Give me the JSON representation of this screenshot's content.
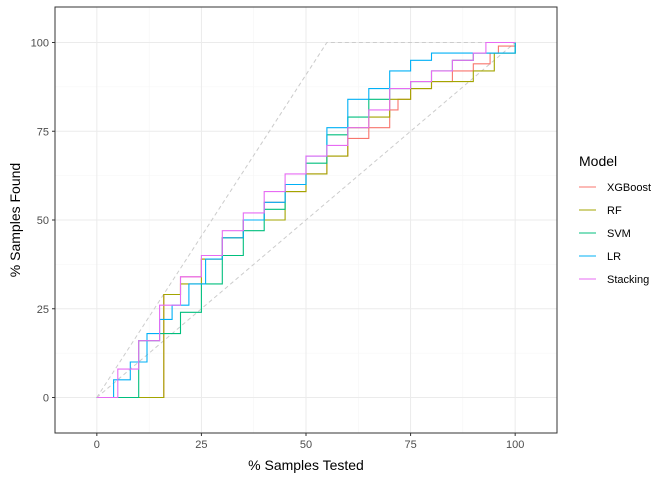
{
  "chart_data": {
    "type": "line",
    "xlabel": "% Samples Tested",
    "ylabel": "% Samples Found",
    "xlim": [
      -10,
      110
    ],
    "ylim": [
      -10,
      110
    ],
    "x_ticks": [
      0,
      25,
      50,
      75,
      100
    ],
    "y_ticks": [
      0,
      25,
      50,
      75,
      100
    ],
    "x_tick_labels": [
      "0",
      "25",
      "50",
      "75",
      "100"
    ],
    "y_tick_labels": [
      "0",
      "25",
      "50",
      "75",
      "100"
    ],
    "grid": true,
    "legend_title": "Model",
    "legend_position": "right",
    "reference_lines": [
      {
        "style": "dashed",
        "color": "#cccccc",
        "points": [
          [
            0,
            0
          ],
          [
            55,
            100
          ],
          [
            100,
            100
          ]
        ]
      },
      {
        "style": "dashed",
        "color": "#cccccc",
        "points": [
          [
            0,
            0
          ],
          [
            100,
            100
          ]
        ]
      }
    ],
    "series": [
      {
        "name": "XGBoost",
        "color": "#F8766D",
        "points": [
          [
            0,
            0
          ],
          [
            16,
            29
          ],
          [
            20,
            34
          ],
          [
            25,
            39
          ],
          [
            30,
            45
          ],
          [
            35,
            50
          ],
          [
            40,
            55
          ],
          [
            45,
            58
          ],
          [
            50,
            63
          ],
          [
            55,
            68
          ],
          [
            60,
            73
          ],
          [
            65,
            76
          ],
          [
            70,
            81
          ],
          [
            72,
            84
          ],
          [
            75,
            87
          ],
          [
            80,
            89
          ],
          [
            85,
            92
          ],
          [
            90,
            94
          ],
          [
            94,
            97
          ],
          [
            96,
            99
          ],
          [
            100,
            100
          ]
        ]
      },
      {
        "name": "RF",
        "color": "#A3A500",
        "points": [
          [
            0,
            0
          ],
          [
            16,
            29
          ],
          [
            20,
            32
          ],
          [
            25,
            39
          ],
          [
            30,
            45
          ],
          [
            35,
            50
          ],
          [
            40,
            50
          ],
          [
            45,
            58
          ],
          [
            50,
            63
          ],
          [
            55,
            68
          ],
          [
            60,
            76
          ],
          [
            65,
            79
          ],
          [
            70,
            84
          ],
          [
            75,
            87
          ],
          [
            80,
            89
          ],
          [
            85,
            89
          ],
          [
            90,
            92
          ],
          [
            95,
            97
          ],
          [
            100,
            100
          ]
        ]
      },
      {
        "name": "SVM",
        "color": "#00BF7D",
        "points": [
          [
            0,
            0
          ],
          [
            10,
            16
          ],
          [
            15,
            18
          ],
          [
            20,
            24
          ],
          [
            25,
            32
          ],
          [
            30,
            40
          ],
          [
            35,
            47
          ],
          [
            40,
            53
          ],
          [
            45,
            60
          ],
          [
            50,
            66
          ],
          [
            55,
            74
          ],
          [
            60,
            79
          ],
          [
            65,
            84
          ],
          [
            70,
            87
          ],
          [
            75,
            89
          ],
          [
            80,
            92
          ],
          [
            85,
            95
          ],
          [
            90,
            97
          ],
          [
            95,
            97
          ],
          [
            100,
            100
          ]
        ]
      },
      {
        "name": "LR",
        "color": "#00B0F6",
        "points": [
          [
            0,
            0
          ],
          [
            4,
            5
          ],
          [
            8,
            10
          ],
          [
            12,
            18
          ],
          [
            15,
            22
          ],
          [
            18,
            26
          ],
          [
            22,
            32
          ],
          [
            26,
            39
          ],
          [
            30,
            45
          ],
          [
            35,
            50
          ],
          [
            40,
            55
          ],
          [
            45,
            60
          ],
          [
            50,
            68
          ],
          [
            55,
            76
          ],
          [
            60,
            84
          ],
          [
            65,
            87
          ],
          [
            70,
            92
          ],
          [
            75,
            95
          ],
          [
            80,
            97
          ],
          [
            85,
            97
          ],
          [
            90,
            97
          ],
          [
            95,
            97
          ],
          [
            100,
            100
          ]
        ]
      },
      {
        "name": "Stacking",
        "color": "#E76BF3",
        "points": [
          [
            0,
            0
          ],
          [
            5,
            8
          ],
          [
            10,
            16
          ],
          [
            15,
            26
          ],
          [
            20,
            34
          ],
          [
            25,
            40
          ],
          [
            30,
            47
          ],
          [
            35,
            52
          ],
          [
            40,
            58
          ],
          [
            45,
            63
          ],
          [
            50,
            68
          ],
          [
            55,
            71
          ],
          [
            60,
            76
          ],
          [
            65,
            81
          ],
          [
            70,
            87
          ],
          [
            75,
            89
          ],
          [
            80,
            92
          ],
          [
            85,
            95
          ],
          [
            90,
            97
          ],
          [
            93,
            100
          ],
          [
            100,
            100
          ]
        ]
      }
    ]
  }
}
